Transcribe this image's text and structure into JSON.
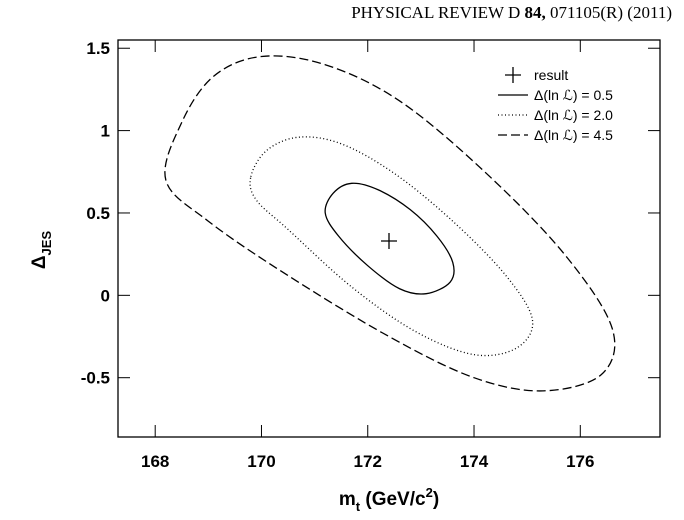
{
  "header": {
    "journal": "PHYSICAL REVIEW D",
    "volume": "84,",
    "page": "071105(R) (2011)"
  },
  "chart_data": {
    "type": "contour",
    "xlabel": [
      "m",
      "t",
      " (GeV/c",
      "2",
      ")"
    ],
    "ylabel": [
      "Δ",
      "JES"
    ],
    "xlim": [
      167.3,
      177.5
    ],
    "ylim": [
      -0.86,
      1.55
    ],
    "xticks": [
      168,
      170,
      172,
      174,
      176
    ],
    "yticks": [
      -0.5,
      0,
      0.5,
      1,
      1.5
    ],
    "legend": "upper right",
    "result": {
      "name": "result",
      "x": 172.4,
      "y": 0.33,
      "color": "#000000"
    },
    "series": [
      {
        "name": "Δ(ln ℒ) = 0.5",
        "style": "solid",
        "color": "#000000",
        "x": [
          171.2,
          171.35,
          171.7,
          172.2,
          172.8,
          173.3,
          173.6,
          173.55,
          173.1,
          172.6,
          172.0,
          171.45
        ],
        "y": [
          0.5,
          0.62,
          0.68,
          0.64,
          0.52,
          0.36,
          0.2,
          0.08,
          0.01,
          0.04,
          0.18,
          0.36
        ]
      },
      {
        "name": "Δ(ln ℒ) = 2.0",
        "style": "dotted",
        "color": "#000000",
        "x": [
          169.8,
          170.1,
          170.7,
          171.5,
          172.5,
          173.6,
          174.6,
          175.1,
          174.8,
          174.0,
          172.9,
          171.7,
          170.5,
          169.9
        ],
        "y": [
          0.72,
          0.88,
          0.96,
          0.92,
          0.74,
          0.45,
          0.12,
          -0.15,
          -0.32,
          -0.36,
          -0.22,
          0.05,
          0.4,
          0.58
        ]
      },
      {
        "name": "Δ(ln ℒ) = 4.5",
        "style": "dashed",
        "color": "#000000",
        "x": [
          168.2,
          168.5,
          169.1,
          170.0,
          171.2,
          172.6,
          174.2,
          175.7,
          176.6,
          176.4,
          175.3,
          174.0,
          172.4,
          170.5,
          169.0
        ],
        "y": [
          0.7,
          1.05,
          1.33,
          1.45,
          1.4,
          1.18,
          0.75,
          0.25,
          -0.2,
          -0.48,
          -0.58,
          -0.5,
          -0.25,
          0.12,
          0.45
        ]
      }
    ]
  }
}
